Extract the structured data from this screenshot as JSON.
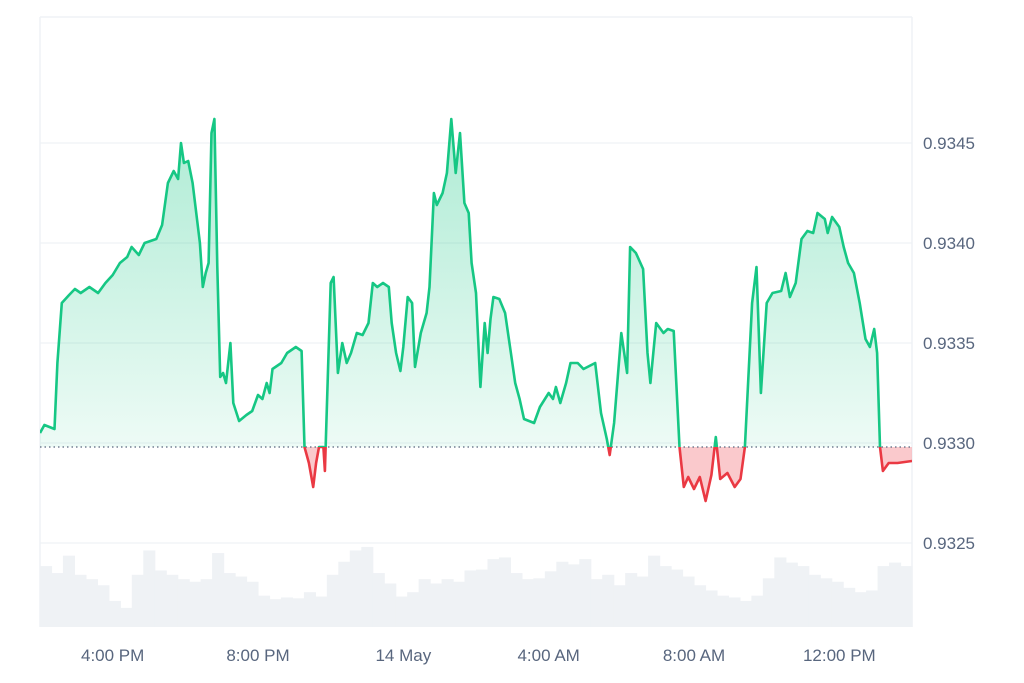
{
  "chart_data": {
    "type": "area",
    "baseline": 0.93298,
    "ylim": [
      0.93208,
      0.93513
    ],
    "xlim": [
      0,
      60
    ],
    "grid": true,
    "y_ticks": [
      "0.9325",
      "0.9330",
      "0.9335",
      "0.9340",
      "0.9345"
    ],
    "y_tick_values": [
      0.9325,
      0.933,
      0.9335,
      0.934,
      0.9345
    ],
    "x_ticks": [
      "4:00 PM",
      "8:00 PM",
      "14 May",
      "4:00 AM",
      "8:00 AM",
      "12:00 PM"
    ],
    "x_tick_values": [
      5,
      15,
      25,
      35,
      45,
      55
    ],
    "colors": {
      "up_line": "#16c784",
      "up_fill_top": "#16c784",
      "down_line": "#ea3943",
      "down_fill": "#f6a5aa",
      "grid": "#eff2f5",
      "baseline": "#58667e",
      "volume": "#eff2f5"
    },
    "price_points": [
      [
        0.0,
        0.93305
      ],
      [
        0.3,
        0.93309
      ],
      [
        1.0,
        0.93307
      ],
      [
        1.2,
        0.9334
      ],
      [
        1.5,
        0.9337
      ],
      [
        2.0,
        0.93374
      ],
      [
        2.4,
        0.93377
      ],
      [
        2.8,
        0.93375
      ],
      [
        3.4,
        0.93378
      ],
      [
        4.0,
        0.93375
      ],
      [
        4.5,
        0.9338
      ],
      [
        5.0,
        0.93384
      ],
      [
        5.5,
        0.9339
      ],
      [
        6.0,
        0.93393
      ],
      [
        6.3,
        0.93398
      ],
      [
        6.8,
        0.93394
      ],
      [
        7.2,
        0.934
      ],
      [
        8.0,
        0.93402
      ],
      [
        8.4,
        0.93409
      ],
      [
        8.8,
        0.9343
      ],
      [
        9.2,
        0.93436
      ],
      [
        9.5,
        0.93432
      ],
      [
        9.7,
        0.9345
      ],
      [
        9.9,
        0.9344
      ],
      [
        10.2,
        0.93441
      ],
      [
        10.5,
        0.9343
      ],
      [
        11.0,
        0.934
      ],
      [
        11.2,
        0.93378
      ],
      [
        11.4,
        0.93385
      ],
      [
        11.6,
        0.9339
      ],
      [
        11.8,
        0.93455
      ],
      [
        12.0,
        0.93462
      ],
      [
        12.2,
        0.93388
      ],
      [
        12.4,
        0.93333
      ],
      [
        12.6,
        0.93335
      ],
      [
        12.8,
        0.9333
      ],
      [
        13.1,
        0.9335
      ],
      [
        13.3,
        0.9332
      ],
      [
        13.7,
        0.93311
      ],
      [
        14.2,
        0.93314
      ],
      [
        14.6,
        0.93316
      ],
      [
        15.0,
        0.93324
      ],
      [
        15.3,
        0.93322
      ],
      [
        15.6,
        0.9333
      ],
      [
        15.8,
        0.93325
      ],
      [
        16.0,
        0.93337
      ],
      [
        16.6,
        0.9334
      ],
      [
        17.0,
        0.93345
      ],
      [
        17.6,
        0.93348
      ],
      [
        18.0,
        0.93346
      ],
      [
        18.2,
        0.93298
      ],
      [
        18.5,
        0.9329
      ],
      [
        18.8,
        0.93278
      ],
      [
        19.0,
        0.9329
      ],
      [
        19.2,
        0.93298
      ],
      [
        19.5,
        0.93298
      ],
      [
        19.6,
        0.93286
      ],
      [
        20.0,
        0.9338
      ],
      [
        20.2,
        0.93383
      ],
      [
        20.5,
        0.93335
      ],
      [
        20.8,
        0.9335
      ],
      [
        21.1,
        0.9334
      ],
      [
        21.4,
        0.93345
      ],
      [
        21.8,
        0.93355
      ],
      [
        22.2,
        0.93354
      ],
      [
        22.6,
        0.9336
      ],
      [
        22.9,
        0.9338
      ],
      [
        23.2,
        0.93378
      ],
      [
        23.6,
        0.9338
      ],
      [
        24.0,
        0.93378
      ],
      [
        24.2,
        0.9336
      ],
      [
        24.5,
        0.93345
      ],
      [
        24.8,
        0.93336
      ],
      [
        25.0,
        0.93348
      ],
      [
        25.3,
        0.93373
      ],
      [
        25.6,
        0.9337
      ],
      [
        25.8,
        0.93338
      ],
      [
        26.2,
        0.93355
      ],
      [
        26.6,
        0.93365
      ],
      [
        26.8,
        0.93378
      ],
      [
        27.1,
        0.93425
      ],
      [
        27.3,
        0.93419
      ],
      [
        27.7,
        0.93425
      ],
      [
        28.0,
        0.93435
      ],
      [
        28.3,
        0.93462
      ],
      [
        28.6,
        0.93435
      ],
      [
        28.9,
        0.93455
      ],
      [
        29.2,
        0.9342
      ],
      [
        29.5,
        0.93415
      ],
      [
        29.7,
        0.9339
      ],
      [
        30.0,
        0.93375
      ],
      [
        30.3,
        0.93328
      ],
      [
        30.6,
        0.9336
      ],
      [
        30.8,
        0.93345
      ],
      [
        31.0,
        0.93362
      ],
      [
        31.2,
        0.93373
      ],
      [
        31.6,
        0.93372
      ],
      [
        32.0,
        0.93365
      ],
      [
        32.4,
        0.93345
      ],
      [
        32.7,
        0.9333
      ],
      [
        33.0,
        0.93322
      ],
      [
        33.3,
        0.93312
      ],
      [
        34.0,
        0.9331
      ],
      [
        34.4,
        0.93318
      ],
      [
        35.0,
        0.93325
      ],
      [
        35.3,
        0.93322
      ],
      [
        35.5,
        0.93328
      ],
      [
        35.8,
        0.9332
      ],
      [
        36.2,
        0.9333
      ],
      [
        36.5,
        0.9334
      ],
      [
        37.0,
        0.9334
      ],
      [
        37.4,
        0.93337
      ],
      [
        38.2,
        0.9334
      ],
      [
        38.6,
        0.93315
      ],
      [
        39.0,
        0.93302
      ],
      [
        39.2,
        0.93294
      ],
      [
        39.5,
        0.9331
      ],
      [
        40.0,
        0.93355
      ],
      [
        40.4,
        0.93335
      ],
      [
        40.6,
        0.93398
      ],
      [
        41.0,
        0.93395
      ],
      [
        41.5,
        0.93387
      ],
      [
        41.8,
        0.93345
      ],
      [
        42.0,
        0.9333
      ],
      [
        42.4,
        0.9336
      ],
      [
        42.9,
        0.93355
      ],
      [
        43.2,
        0.93357
      ],
      [
        43.6,
        0.93356
      ],
      [
        44.0,
        0.93298
      ],
      [
        44.3,
        0.93278
      ],
      [
        44.6,
        0.93283
      ],
      [
        45.0,
        0.93277
      ],
      [
        45.4,
        0.93283
      ],
      [
        45.8,
        0.93271
      ],
      [
        46.2,
        0.93284
      ],
      [
        46.5,
        0.93303
      ],
      [
        46.8,
        0.93282
      ],
      [
        47.3,
        0.93285
      ],
      [
        47.8,
        0.93278
      ],
      [
        48.2,
        0.93282
      ],
      [
        48.5,
        0.93298
      ],
      [
        49.0,
        0.9337
      ],
      [
        49.3,
        0.93388
      ],
      [
        49.6,
        0.93325
      ],
      [
        50.0,
        0.9337
      ],
      [
        50.4,
        0.93375
      ],
      [
        51.0,
        0.93376
      ],
      [
        51.3,
        0.93385
      ],
      [
        51.6,
        0.93373
      ],
      [
        52.0,
        0.9338
      ],
      [
        52.4,
        0.93402
      ],
      [
        52.8,
        0.93406
      ],
      [
        53.2,
        0.93405
      ],
      [
        53.5,
        0.93415
      ],
      [
        54.0,
        0.93412
      ],
      [
        54.2,
        0.93405
      ],
      [
        54.5,
        0.93413
      ],
      [
        55.0,
        0.93408
      ],
      [
        55.3,
        0.93398
      ],
      [
        55.6,
        0.9339
      ],
      [
        56.0,
        0.93385
      ],
      [
        56.4,
        0.9337
      ],
      [
        56.8,
        0.93352
      ],
      [
        57.1,
        0.93348
      ],
      [
        57.4,
        0.93357
      ],
      [
        57.6,
        0.93345
      ],
      [
        57.8,
        0.93298
      ],
      [
        58.0,
        0.93286
      ],
      [
        58.4,
        0.9329
      ],
      [
        59.0,
        0.9329
      ],
      [
        60.0,
        0.93291
      ]
    ],
    "volume_rel": [
      0.7,
      0.62,
      0.82,
      0.6,
      0.55,
      0.48,
      0.3,
      0.22,
      0.6,
      0.88,
      0.65,
      0.6,
      0.55,
      0.52,
      0.55,
      0.85,
      0.62,
      0.58,
      0.52,
      0.36,
      0.32,
      0.34,
      0.33,
      0.4,
      0.35,
      0.6,
      0.75,
      0.88,
      0.92,
      0.62,
      0.5,
      0.35,
      0.4,
      0.55,
      0.5,
      0.55,
      0.52,
      0.65,
      0.66,
      0.78,
      0.8,
      0.62,
      0.55,
      0.56,
      0.64,
      0.75,
      0.72,
      0.78,
      0.55,
      0.6,
      0.48,
      0.62,
      0.58,
      0.82,
      0.7,
      0.66,
      0.58,
      0.48,
      0.42,
      0.36,
      0.34,
      0.3,
      0.36,
      0.56,
      0.8,
      0.74,
      0.7,
      0.6,
      0.56,
      0.52,
      0.45,
      0.4,
      0.42,
      0.7,
      0.74,
      0.7
    ]
  }
}
